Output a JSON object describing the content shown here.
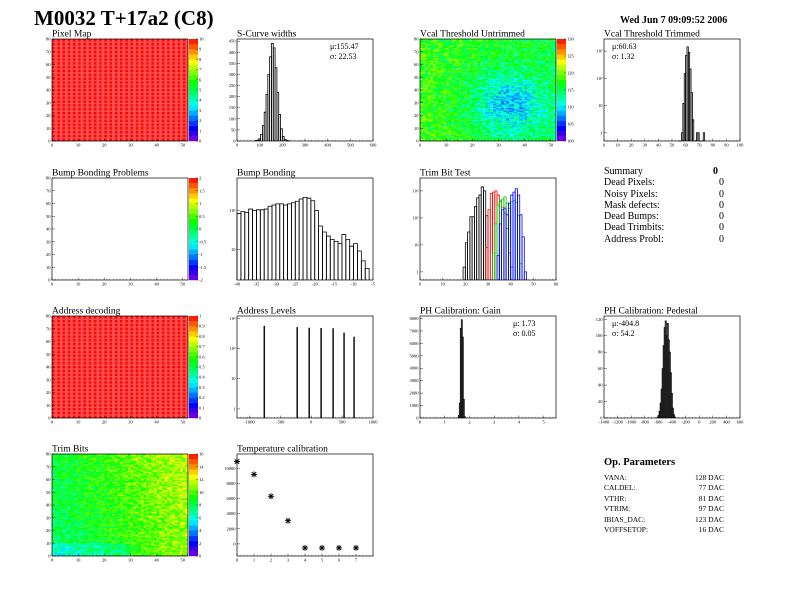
{
  "header": {
    "title": "M0032 T+17a2 (C8)",
    "date": "Wed Jun  7 09:09:52 2006"
  },
  "summary": {
    "title": "Summary",
    "total": "0",
    "rows": [
      {
        "label": "Dead Pixels:",
        "value": "0"
      },
      {
        "label": "Noisy Pixels:",
        "value": "0"
      },
      {
        "label": "Mask defects:",
        "value": "0"
      },
      {
        "label": "Dead Bumps:",
        "value": "0"
      },
      {
        "label": "Dead Trimbits:",
        "value": "0"
      },
      {
        "label": "Address Probl:",
        "value": "0"
      }
    ]
  },
  "op_parameters": {
    "title": "Op. Parameters",
    "rows": [
      {
        "label": "VANA:",
        "value": "128 DAC"
      },
      {
        "label": "CALDEL:",
        "value": "77 DAC"
      },
      {
        "label": "VTHR:",
        "value": "81 DAC"
      },
      {
        "label": "VTRIM:",
        "value": "97 DAC"
      },
      {
        "label": "IBIAS_DAC:",
        "value": "123 DAC"
      },
      {
        "label": "VOFFSETOP:",
        "value": "16 DAC"
      }
    ]
  },
  "chart_data": [
    {
      "id": "pixel_map",
      "type": "heatmap",
      "title": "Pixel Map",
      "x_range": [
        0,
        52
      ],
      "y_range": [
        0,
        80
      ],
      "x_ticks": [
        "0",
        "10",
        "20",
        "30",
        "40",
        "50"
      ],
      "y_ticks": [
        "0",
        "10",
        "20",
        "30",
        "40",
        "50",
        "60",
        "70",
        "80"
      ],
      "z_range": [
        0,
        10
      ],
      "z_ticks": [
        "0",
        "1",
        "2",
        "3",
        "4",
        "5",
        "6",
        "7",
        "8",
        "9",
        "10"
      ],
      "uniform_value": 10
    },
    {
      "id": "s_curve",
      "type": "histogram",
      "title": "S-Curve widths",
      "x_range": [
        0,
        600
      ],
      "y_range": [
        0,
        460
      ],
      "x_ticks": [
        "0",
        "100",
        "200",
        "300",
        "400",
        "500",
        "600"
      ],
      "y_ticks": [
        "0",
        "50",
        "100",
        "150",
        "200",
        "250",
        "300",
        "350",
        "400",
        "450"
      ],
      "bin_start": 80,
      "bin_width": 8,
      "series": [
        {
          "color": "#000000",
          "values": [
            2,
            4,
            10,
            30,
            70,
            130,
            210,
            300,
            380,
            440,
            420,
            330,
            220,
            120,
            55,
            20,
            8,
            3,
            1
          ]
        }
      ],
      "stats": [
        "μ:155.47",
        "σ: 22.53"
      ],
      "stats_side": "right"
    },
    {
      "id": "vcal_untrimmed",
      "type": "heatmap",
      "title": "Vcal Threshold Untrimmed",
      "x_range": [
        0,
        52
      ],
      "y_range": [
        0,
        80
      ],
      "x_ticks": [
        "0",
        "10",
        "20",
        "30",
        "40",
        "50"
      ],
      "y_ticks": [
        "0",
        "10",
        "20",
        "30",
        "40",
        "50",
        "60",
        "70",
        "80"
      ],
      "z_range": [
        95,
        132
      ],
      "z_ticks": [
        "100",
        "105",
        "110",
        "115",
        "120",
        "125",
        "130"
      ]
    },
    {
      "id": "vcal_trimmed",
      "type": "histogram",
      "log_y": true,
      "title": "Vcal Threshold Trimmed",
      "x_range": [
        0,
        100
      ],
      "y_range": [
        0.5,
        2800
      ],
      "x_ticks": [
        "0",
        "10",
        "20",
        "30",
        "40",
        "50",
        "60",
        "70",
        "80",
        "90",
        "100"
      ],
      "y_ticks": [
        [
          "1",
          1
        ],
        [
          "10",
          10
        ],
        [
          "10²",
          100
        ],
        [
          "10³",
          1000
        ]
      ],
      "bin_start": 55,
      "bin_width": 1,
      "series": [
        {
          "color": "#000000",
          "values": [
            0,
            0,
            1,
            12,
            150,
            700,
            1440,
            900,
            220,
            30,
            3,
            0,
            0,
            1,
            1,
            0,
            0,
            0,
            1
          ]
        }
      ],
      "stats": [
        "μ:60.63",
        "σ: 1.32"
      ],
      "stats_side": "left"
    },
    {
      "id": "bump_problems",
      "type": "heatmap",
      "title": "Bump Bonding Problems",
      "x_range": [
        0,
        52
      ],
      "y_range": [
        0,
        80
      ],
      "x_ticks": [
        "0",
        "10",
        "20",
        "30",
        "40",
        "50"
      ],
      "y_ticks": [
        "0",
        "10",
        "20",
        "30",
        "40",
        "50",
        "60",
        "70",
        "80"
      ],
      "z_range": [
        -2,
        2
      ],
      "z_ticks": [
        "-2",
        "-1.5",
        "-1",
        "-0.5",
        "0",
        "0.5",
        "1",
        "1.5",
        "2"
      ],
      "empty": true
    },
    {
      "id": "bump_bonding",
      "type": "histogram",
      "log_y": true,
      "title": "Bump Bonding",
      "x_range": [
        -40,
        -5
      ],
      "y_range": [
        1.6,
        700
      ],
      "x_ticks": [
        "-40",
        "-35",
        "-30",
        "-25",
        "-20",
        "-15",
        "-10",
        "-5"
      ],
      "y_ticks": [
        [
          "10",
          10
        ],
        [
          "10²",
          100
        ]
      ],
      "bin_start": -40,
      "bin_width": 1,
      "series": [
        {
          "color": "#000000",
          "values": [
            84,
            95,
            90,
            110,
            100,
            105,
            105,
            110,
            130,
            140,
            150,
            150,
            140,
            150,
            160,
            175,
            200,
            220,
            210,
            180,
            100,
            40,
            28,
            22,
            18,
            16,
            14,
            24,
            18,
            12,
            14,
            9,
            5,
            3.2
          ]
        }
      ]
    },
    {
      "id": "trim_bit_test",
      "type": "histogram",
      "log_y": true,
      "title": "Trim Bit Test",
      "x_range": [
        0,
        60
      ],
      "y_range": [
        0.5,
        3000
      ],
      "x_ticks": [
        "0",
        "10",
        "20",
        "30",
        "40",
        "50",
        "60"
      ],
      "y_ticks": [
        [
          "1",
          1
        ],
        [
          "10",
          10
        ],
        [
          "10²",
          100
        ],
        [
          "10³",
          1000
        ]
      ],
      "bin_width": 1,
      "series": [
        {
          "color": "#000000",
          "bin_start": 19,
          "values": [
            1.5,
            12,
            30,
            110,
            110,
            260,
            550,
            700,
            1400,
            1000,
            120
          ]
        },
        {
          "color": "#ff0000",
          "bin_start": 29,
          "values": [
            8,
            200,
            800,
            900,
            1000,
            700,
            400,
            250,
            150,
            40,
            5,
            1.5,
            0.5
          ]
        },
        {
          "color": "#00cc00",
          "bin_start": 32,
          "values": [
            5,
            60,
            300,
            450,
            500,
            600,
            350,
            220,
            400,
            450,
            380,
            120,
            2
          ]
        },
        {
          "color": "#0000ff",
          "bin_start": 34,
          "values": [
            4,
            60,
            200,
            230,
            130,
            350,
            700,
            900,
            1200,
            700,
            130,
            20,
            1
          ]
        }
      ]
    },
    {
      "id": "address_decoding",
      "type": "heatmap",
      "title": "Address decoding",
      "x_range": [
        0,
        52
      ],
      "y_range": [
        0,
        80
      ],
      "x_ticks": [
        "0",
        "10",
        "20",
        "30",
        "40",
        "50"
      ],
      "y_ticks": [
        "0",
        "10",
        "20",
        "30",
        "40",
        "50",
        "60",
        "70",
        "80"
      ],
      "z_range": [
        0,
        1
      ],
      "z_ticks": [
        "0",
        "0.1",
        "0.2",
        "0.3",
        "0.4",
        "0.5",
        "0.6",
        "0.7",
        "0.8",
        "0.9",
        "1"
      ],
      "uniform_value": 1
    },
    {
      "id": "address_levels",
      "type": "histogram",
      "log_y": true,
      "title": "Address Levels",
      "x_range": [
        -1200,
        1000
      ],
      "y_range": [
        0.5,
        1200
      ],
      "x_ticks": [
        "-1000",
        "-500",
        "0",
        "500",
        "1000"
      ],
      "y_ticks": [
        [
          "1",
          1
        ],
        [
          "10",
          10
        ],
        [
          "10²",
          100
        ],
        [
          "10³",
          1000
        ]
      ],
      "peaks": [
        {
          "x": -758,
          "y": 550
        },
        {
          "x": -226,
          "y": 500
        },
        {
          "x": -32,
          "y": 480
        },
        {
          "x": 161,
          "y": 470
        },
        {
          "x": 355,
          "y": 460
        },
        {
          "x": 532,
          "y": 330
        },
        {
          "x": 694,
          "y": 240
        }
      ],
      "peak_width": 14
    },
    {
      "id": "ph_gain",
      "type": "histogram",
      "title": "PH Calibration: Gain",
      "x_range": [
        0,
        5.5
      ],
      "y_range": [
        0,
        8200
      ],
      "x_ticks": [
        "0",
        "1",
        "2",
        "3",
        "4",
        "5"
      ],
      "y_ticks": [
        "0",
        "1000",
        "2000",
        "3000",
        "4000",
        "5000",
        "6000",
        "7000",
        "8000"
      ],
      "bin_start": 1.55,
      "bin_width": 0.04,
      "series": [
        {
          "color": "#000000",
          "values": [
            200,
            1200,
            7200,
            7900,
            6500,
            1500,
            100
          ]
        }
      ],
      "stats": [
        "μ: 1.73",
        "σ: 0.05"
      ],
      "stats_side": "right"
    },
    {
      "id": "ph_pedestal",
      "type": "histogram",
      "title": "PH Calibration: Pedestal",
      "x_range": [
        -1400,
        600
      ],
      "y_range": [
        0,
        124
      ],
      "x_ticks": [
        "-1400",
        "-1200",
        "-1000",
        "-800",
        "-600",
        "-400",
        "-200",
        "0",
        "200",
        "400",
        "600"
      ],
      "y_ticks": [
        "0",
        "20",
        "40",
        "60",
        "80",
        "100",
        "120"
      ],
      "bin_start": -620,
      "bin_width": 15,
      "series": [
        {
          "color": "#000000",
          "values": [
            1,
            3,
            8,
            18,
            35,
            60,
            88,
            110,
            118,
            100,
            115,
            95,
            80,
            55,
            30,
            12,
            4,
            1
          ]
        }
      ],
      "stats": [
        "μ:-404.8",
        "σ: 54.2"
      ],
      "stats_side": "left"
    },
    {
      "id": "trim_bits",
      "type": "heatmap",
      "title": "Trim Bits",
      "x_range": [
        0,
        52
      ],
      "y_range": [
        0,
        80
      ],
      "x_ticks": [
        "0",
        "10",
        "20",
        "30",
        "40",
        "50"
      ],
      "y_ticks": [
        "0",
        "10",
        "20",
        "30",
        "40",
        "50",
        "60",
        "70",
        "80"
      ],
      "z_range": [
        0,
        16
      ],
      "z_ticks": [
        "0",
        "2",
        "4",
        "6",
        "8",
        "10",
        "12",
        "14",
        "16"
      ]
    },
    {
      "id": "temperature",
      "type": "scatter",
      "title": "Temperature calibration",
      "x_range": [
        0,
        8
      ],
      "y_range": [
        -1600,
        11900
      ],
      "x_ticks": [
        "0",
        "1",
        "2",
        "3",
        "4",
        "5",
        "6",
        "7"
      ],
      "y_ticks": [
        "0",
        "2000",
        "4000",
        "6000",
        "8000",
        "10000"
      ],
      "points": [
        [
          0,
          10900
        ],
        [
          1,
          9200
        ],
        [
          2,
          6300
        ],
        [
          3,
          3070
        ],
        [
          4,
          -530
        ],
        [
          5,
          -530
        ],
        [
          6,
          -530
        ],
        [
          7,
          -530
        ]
      ]
    }
  ]
}
